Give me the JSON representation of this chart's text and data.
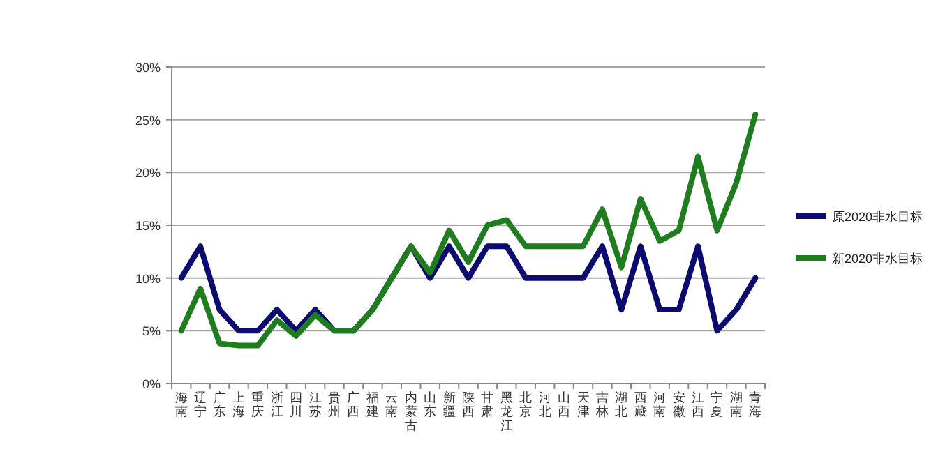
{
  "chart_data": {
    "type": "line",
    "categories": [
      "海南",
      "辽宁",
      "广东",
      "上海",
      "重庆",
      "浙江",
      "四川",
      "江苏",
      "贵州",
      "广西",
      "福建",
      "云南",
      "内蒙古",
      "山东",
      "新疆",
      "陕西",
      "甘肃",
      "黑龙江",
      "北京",
      "河北",
      "山西",
      "天津",
      "吉林",
      "湖北",
      "西藏",
      "河南",
      "安徽",
      "江西",
      "宁夏",
      "湖南",
      "青海"
    ],
    "series": [
      {
        "name": "原2020非水目标",
        "color": "#0c0c70",
        "values": [
          10,
          13,
          7,
          5,
          5,
          7,
          5,
          7,
          5,
          5,
          7,
          10,
          13,
          10,
          13,
          10,
          13,
          13,
          10,
          10,
          10,
          10,
          13,
          7,
          13,
          7,
          7,
          13,
          5,
          7,
          10
        ]
      },
      {
        "name": "新2020非水目标",
        "color": "#1f7d1f",
        "values": [
          5,
          9,
          3.8,
          3.6,
          3.6,
          6,
          4.5,
          6.5,
          5,
          5,
          7,
          10,
          13,
          10.5,
          14.5,
          11.5,
          15,
          15.5,
          13,
          13,
          13,
          13,
          16.5,
          11,
          17.5,
          13.5,
          14.5,
          21.5,
          14.5,
          19,
          25.5
        ]
      }
    ],
    "ylim": [
      0,
      30
    ],
    "yticks": [
      {
        "value": 0,
        "label": "0%"
      },
      {
        "value": 5,
        "label": "5%"
      },
      {
        "value": 10,
        "label": "10%"
      },
      {
        "value": 15,
        "label": "15%"
      },
      {
        "value": 20,
        "label": "20%"
      },
      {
        "value": 25,
        "label": "25%"
      },
      {
        "value": 30,
        "label": "30%"
      }
    ],
    "grid": "y",
    "legend": "right",
    "marker": "none",
    "line_style": "solid"
  }
}
